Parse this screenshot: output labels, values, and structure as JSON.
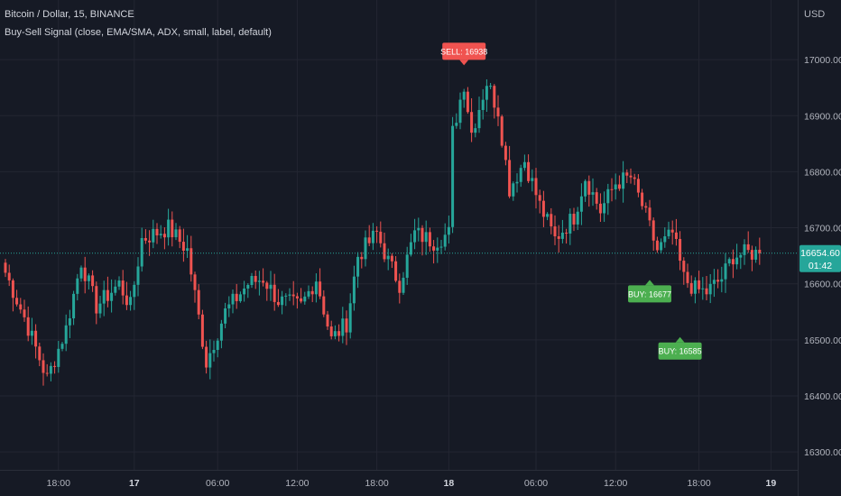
{
  "header": {
    "symbol_line": "Bitcoin / Dollar, 15, BINANCE",
    "indicator_line": "Buy-Sell Signal (close, EMA/SMA, ADX, small, label, default)"
  },
  "currency": "USD",
  "colors": {
    "background": "#161a25",
    "grid": "#232632",
    "up": "#26a69a",
    "down": "#ef5350",
    "buy_label": "#4caf50",
    "sell_label": "#f05350",
    "axis_text": "#b2b5be",
    "last_price_bg": "#26a69a"
  },
  "last_price": {
    "value": "16654.60",
    "countdown": "01:42"
  },
  "chart_data": {
    "type": "candlestick",
    "title": "Bitcoin / Dollar, 15, BINANCE",
    "ylabel": "USD",
    "ylim": [
      16260,
      17090
    ],
    "y_ticks": [
      "16300.00",
      "16400.00",
      "16500.00",
      "16600.00",
      "16700.00",
      "16800.00",
      "16900.00",
      "17000.00"
    ],
    "y_tick_values": [
      16300,
      16400,
      16500,
      16600,
      16700,
      16800,
      16900,
      17000
    ],
    "x_ticks": [
      "18:00",
      "17",
      "06:00",
      "12:00",
      "18:00",
      "18",
      "06:00",
      "12:00",
      "18:00",
      "19"
    ],
    "x_tick_index": [
      14,
      34,
      56,
      77,
      98,
      117,
      140,
      161,
      183,
      202
    ],
    "grid": true,
    "num_candles": 200,
    "anchors": [
      {
        "i": 0,
        "v": 16620
      },
      {
        "i": 5,
        "v": 16540
      },
      {
        "i": 11,
        "v": 16430
      },
      {
        "i": 16,
        "v": 16520
      },
      {
        "i": 20,
        "v": 16640
      },
      {
        "i": 24,
        "v": 16560
      },
      {
        "i": 30,
        "v": 16600
      },
      {
        "i": 33,
        "v": 16560
      },
      {
        "i": 36,
        "v": 16680
      },
      {
        "i": 43,
        "v": 16700
      },
      {
        "i": 48,
        "v": 16660
      },
      {
        "i": 53,
        "v": 16460
      },
      {
        "i": 58,
        "v": 16550
      },
      {
        "i": 64,
        "v": 16600
      },
      {
        "i": 68,
        "v": 16610
      },
      {
        "i": 72,
        "v": 16570
      },
      {
        "i": 78,
        "v": 16560
      },
      {
        "i": 82,
        "v": 16610
      },
      {
        "i": 86,
        "v": 16500
      },
      {
        "i": 90,
        "v": 16530
      },
      {
        "i": 93,
        "v": 16650
      },
      {
        "i": 98,
        "v": 16690
      },
      {
        "i": 101,
        "v": 16640
      },
      {
        "i": 104,
        "v": 16600
      },
      {
        "i": 108,
        "v": 16690
      },
      {
        "i": 113,
        "v": 16675
      },
      {
        "i": 117,
        "v": 16690
      },
      {
        "i": 118,
        "v": 16870
      },
      {
        "i": 121,
        "v": 16958
      },
      {
        "i": 123,
        "v": 16870
      },
      {
        "i": 127,
        "v": 16960
      },
      {
        "i": 130,
        "v": 16910
      },
      {
        "i": 133,
        "v": 16770
      },
      {
        "i": 137,
        "v": 16820
      },
      {
        "i": 141,
        "v": 16740
      },
      {
        "i": 145,
        "v": 16680
      },
      {
        "i": 150,
        "v": 16720
      },
      {
        "i": 153,
        "v": 16790
      },
      {
        "i": 157,
        "v": 16730
      },
      {
        "i": 161,
        "v": 16780
      },
      {
        "i": 165,
        "v": 16790
      },
      {
        "i": 168,
        "v": 16740
      },
      {
        "i": 172,
        "v": 16660
      },
      {
        "i": 176,
        "v": 16690
      },
      {
        "i": 179,
        "v": 16610
      },
      {
        "i": 182,
        "v": 16590
      },
      {
        "i": 185,
        "v": 16585
      },
      {
        "i": 189,
        "v": 16610
      },
      {
        "i": 192,
        "v": 16650
      },
      {
        "i": 196,
        "v": 16655
      },
      {
        "i": 199,
        "v": 16654.6
      }
    ],
    "signals": [
      {
        "type": "sell",
        "label": "SELL: 16938",
        "price": 16990,
        "index": 121
      },
      {
        "type": "buy",
        "label": "BUY: 16677",
        "price": 16607,
        "index": 170
      },
      {
        "type": "buy",
        "label": "BUY: 16585",
        "price": 16505,
        "index": 178
      }
    ]
  }
}
